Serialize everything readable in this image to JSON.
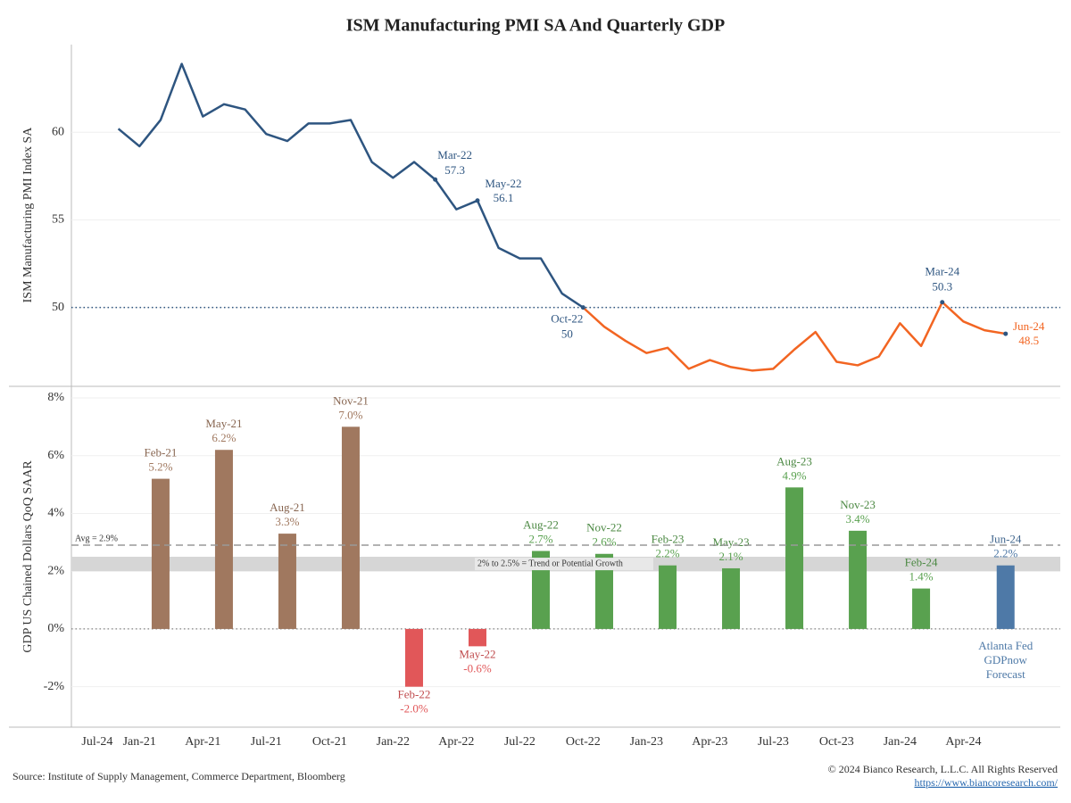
{
  "chart_data": [
    {
      "type": "line",
      "title": "ISM Manufacturing PMI SA And Quarterly GDP",
      "ylabel": "ISM Manufacturing PMI Index SA",
      "x": [
        "Dec-20",
        "Jan-21",
        "Feb-21",
        "Mar-21",
        "Apr-21",
        "May-21",
        "Jun-21",
        "Jul-21",
        "Aug-21",
        "Sep-21",
        "Oct-21",
        "Nov-21",
        "Dec-21",
        "Jan-22",
        "Feb-22",
        "Mar-22",
        "Apr-22",
        "May-22",
        "Jun-22",
        "Jul-22",
        "Aug-22",
        "Sep-22",
        "Oct-22",
        "Nov-22",
        "Dec-22",
        "Jan-23",
        "Feb-23",
        "Mar-23",
        "Apr-23",
        "May-23",
        "Jun-23",
        "Jul-23",
        "Aug-23",
        "Sep-23",
        "Oct-23",
        "Nov-23",
        "Dec-23",
        "Jan-24",
        "Feb-24",
        "Mar-24",
        "Apr-24",
        "May-24",
        "Jun-24"
      ],
      "xticks": [
        "Jan-21",
        "Apr-21",
        "Jul-21",
        "Oct-21",
        "Jan-22",
        "Apr-22",
        "Jul-22",
        "Oct-22",
        "Jan-23",
        "Apr-23",
        "Jul-23",
        "Oct-23",
        "Jan-24",
        "Apr-24",
        "Jul-24"
      ],
      "series": [
        {
          "color": "#2e5580",
          "values": [
            60.2,
            59.2,
            60.7,
            63.9,
            60.9,
            61.6,
            61.3,
            59.9,
            59.5,
            60.5,
            60.5,
            60.7,
            58.3,
            57.4,
            58.3,
            57.3,
            55.6,
            56.1,
            53.4,
            52.8,
            52.8,
            50.8,
            50,
            null,
            null,
            null,
            null,
            null,
            null,
            null,
            null,
            null,
            null,
            null,
            null,
            null,
            null,
            null,
            null,
            null,
            null,
            null,
            null
          ]
        },
        {
          "color": "#f26522",
          "values": [
            null,
            null,
            null,
            null,
            null,
            null,
            null,
            null,
            null,
            null,
            null,
            null,
            null,
            null,
            null,
            null,
            null,
            null,
            null,
            null,
            null,
            null,
            50,
            48.9,
            48.1,
            47.4,
            47.7,
            46.5,
            47.0,
            46.6,
            46.4,
            46.5,
            47.6,
            48.6,
            46.9,
            46.7,
            47.2,
            49.1,
            47.8,
            50.3,
            49.2,
            48.7,
            48.5
          ]
        }
      ],
      "annotations": [
        "Mar-22",
        "May-22",
        "Oct-22",
        "Mar-24",
        "Jun-24"
      ],
      "reference_line": 50,
      "ylim": [
        45.5,
        65
      ],
      "yticks": [
        50,
        55,
        60
      ]
    },
    {
      "type": "bar",
      "ylabel": "GDP US Chained Dollars QoQ SAAR",
      "x": [
        "Feb-21",
        "May-21",
        "Aug-21",
        "Nov-21",
        "Feb-22",
        "May-22",
        "Aug-22",
        "Nov-22",
        "Feb-23",
        "May-23",
        "Aug-23",
        "Nov-23",
        "Feb-24",
        "Jun-24"
      ],
      "values": [
        5.2,
        6.2,
        3.3,
        7.0,
        -2.0,
        -0.6,
        2.7,
        2.6,
        2.2,
        2.1,
        4.9,
        3.4,
        1.4,
        2.2
      ],
      "value_labels": [
        "5.2%",
        "6.2%",
        "3.3%",
        "7.0%",
        "-2.0%",
        "-0.6%",
        "2.7%",
        "2.6%",
        "2.2%",
        "2.1%",
        "4.9%",
        "3.4%",
        "1.4%",
        "2.2%"
      ],
      "colors": [
        "#a0785f",
        "#a0785f",
        "#a0785f",
        "#a0785f",
        "#e15759",
        "#e15759",
        "#59a14f",
        "#59a14f",
        "#59a14f",
        "#59a14f",
        "#59a14f",
        "#59a14f",
        "#59a14f",
        "#4e79a7"
      ],
      "average": {
        "value": 2.9,
        "label": "Avg = 2.9%"
      },
      "band": {
        "from": 2,
        "to": 2.5,
        "label": "2% to 2.5% = Trend or Potential Growth"
      },
      "forecast_note": [
        "Atlanta Fed",
        "GDPnow",
        "Forecast"
      ],
      "ylim": [
        -3.4,
        8.4
      ],
      "yticks": [
        {
          "value": -2,
          "label": "-2%"
        },
        {
          "value": 0,
          "label": "0%"
        },
        {
          "value": 2,
          "label": "2%"
        },
        {
          "value": 4,
          "label": "4%"
        },
        {
          "value": 6,
          "label": "6%"
        },
        {
          "value": 8,
          "label": "8%"
        }
      ]
    }
  ],
  "footer": {
    "source": "Source: Institute of Supply Management, Commerce Department, Bloomberg",
    "copyright": "© 2024 Bianco Research, L.L.C. All Rights Reserved",
    "url": "https://www.biancoresearch.com/"
  }
}
